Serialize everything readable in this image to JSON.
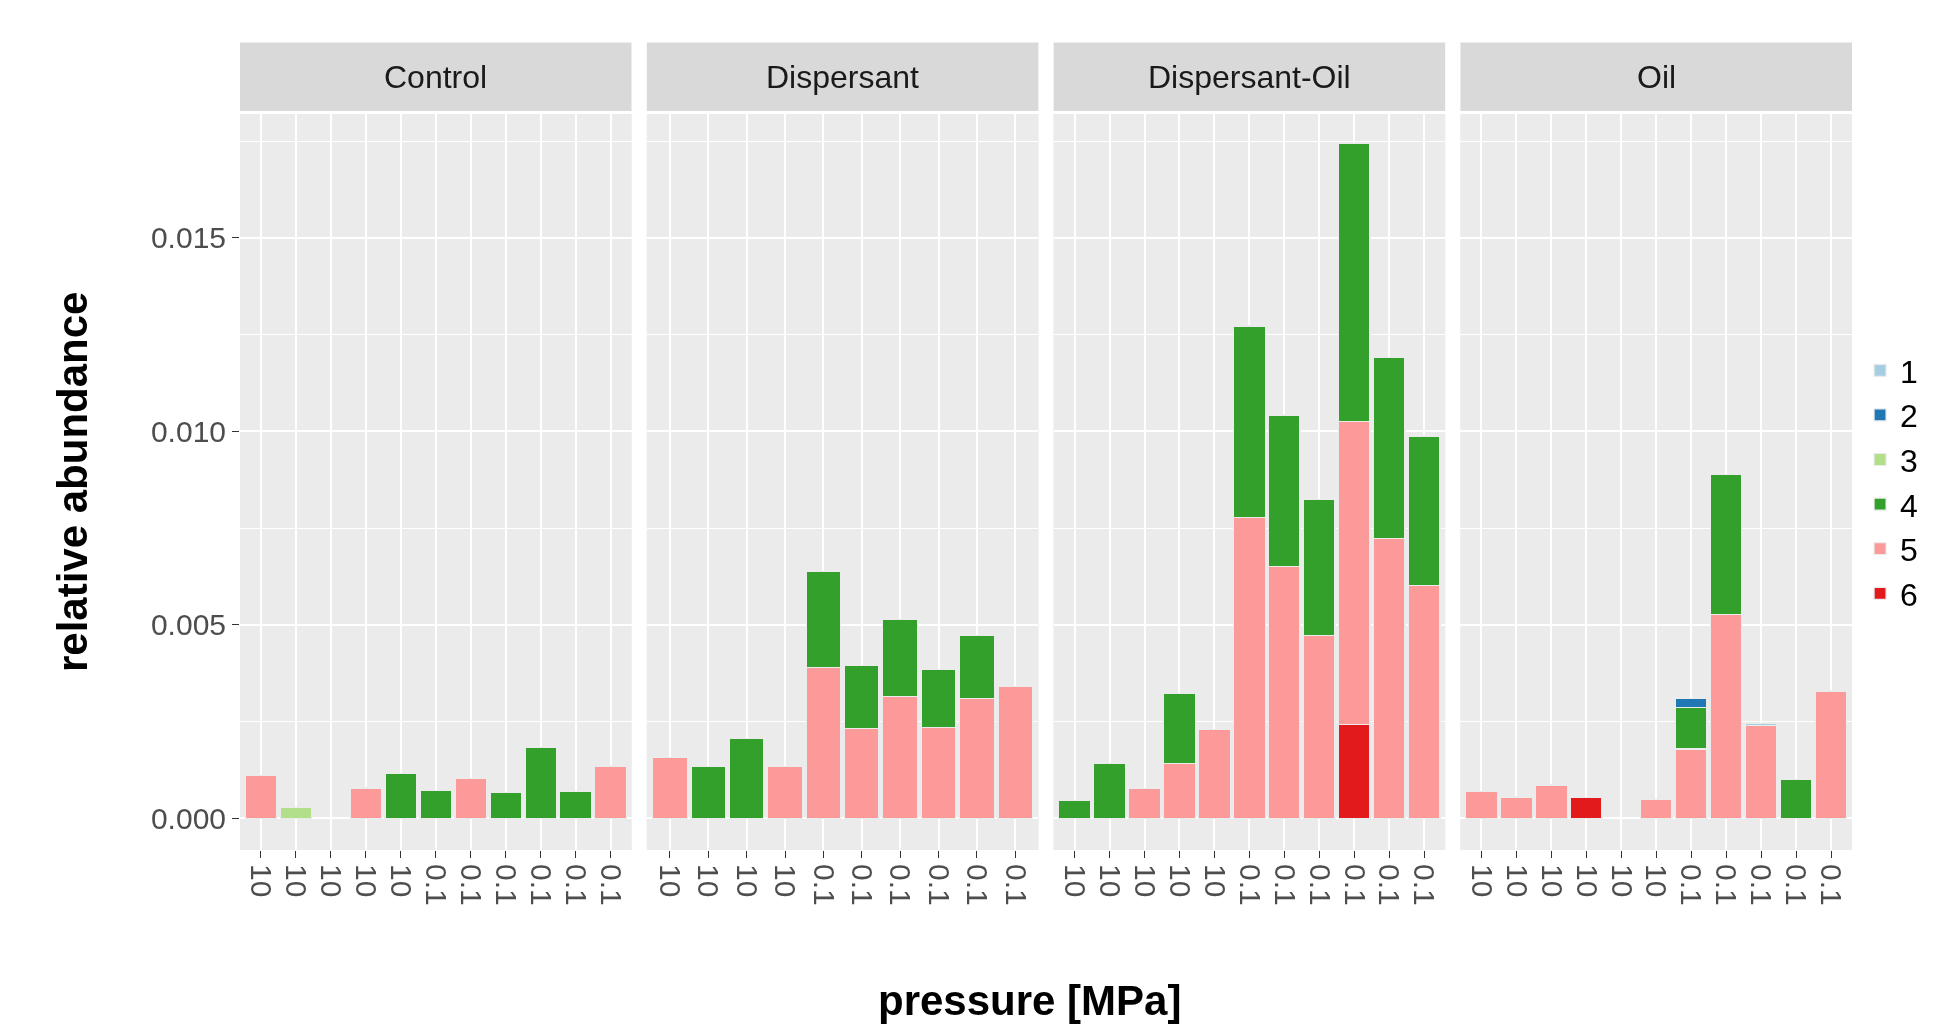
{
  "chart_data": [
    {
      "type": "bar",
      "title": "Control",
      "ylabel": "relative abundance",
      "stacked": true,
      "legend": "right",
      "grid": true,
      "categories": [
        "10",
        "10",
        "10",
        "10",
        "10",
        "0.1",
        "0.1",
        "0.1",
        "0.1",
        "0.1",
        "0.1"
      ],
      "ylim": [
        -0.00082,
        0.0182
      ],
      "yticks": [
        {
          "value": 0.0,
          "label": "0.000"
        },
        {
          "value": 0.0025,
          "label": null
        },
        {
          "value": 0.005,
          "label": "0.005"
        },
        {
          "value": 0.0075,
          "label": null
        },
        {
          "value": 0.01,
          "label": "0.010"
        },
        {
          "value": 0.0125,
          "label": null
        },
        {
          "value": 0.015,
          "label": "0.015"
        },
        {
          "value": 0.0175,
          "label": null
        }
      ],
      "series": [
        {
          "name": "6",
          "color": "#e31a1c",
          "values": [
            null,
            null,
            null,
            null,
            null,
            null,
            null,
            null,
            null,
            null,
            null
          ]
        },
        {
          "name": "5",
          "color": "#fb9a99",
          "values": [
            0.0011,
            null,
            null,
            0.00078,
            null,
            null,
            0.00102,
            null,
            null,
            null,
            0.00135
          ]
        },
        {
          "name": "4",
          "color": "#33a02c",
          "values": [
            null,
            null,
            null,
            null,
            0.00115,
            0.00072,
            null,
            0.00067,
            0.00183,
            0.0007,
            null
          ]
        },
        {
          "name": "3",
          "color": "#b2df8a",
          "values": [
            null,
            0.00027,
            null,
            null,
            null,
            null,
            null,
            null,
            null,
            null,
            null
          ]
        },
        {
          "name": "2",
          "color": "#1f78b4",
          "values": [
            null,
            null,
            null,
            null,
            null,
            null,
            null,
            null,
            null,
            null,
            null
          ]
        },
        {
          "name": "1",
          "color": "#a6cee3",
          "values": [
            null,
            null,
            null,
            null,
            null,
            null,
            null,
            null,
            null,
            null,
            null
          ]
        }
      ]
    },
    {
      "type": "bar",
      "title": "Dispersant",
      "xlabel": "pressure [MPa]",
      "stacked": true,
      "grid": true,
      "tick_labels": "x",
      "categories": [
        "10",
        "10",
        "10",
        "10",
        "0.1",
        "0.1",
        "0.1",
        "0.1",
        "0.1",
        "0.1"
      ],
      "ylim": [
        -0.00082,
        0.0182
      ],
      "yticks": [
        0,
        {
          "value": 0.0025,
          "label": null
        },
        0.005,
        {
          "value": 0.0075,
          "label": null
        },
        0.01,
        {
          "value": 0.0125,
          "label": null
        },
        0.015,
        {
          "value": 0.0175,
          "label": null
        }
      ],
      "series": [
        {
          "color": "#fb9a99",
          "values": [
            0.00157,
            null,
            null,
            0.00133,
            0.0039,
            0.00232,
            0.00315,
            0.00235,
            0.0031,
            0.0034
          ]
        },
        {
          "color": "#33a02c",
          "values": [
            null,
            0.00133,
            0.00207,
            null,
            0.00248,
            0.00163,
            0.00199,
            0.00149,
            0.00163,
            null
          ]
        }
      ]
    },
    {
      "type": "bar",
      "title": "Dispersant-Oil",
      "stacked": true,
      "grid": true,
      "tick_labels": "x",
      "categories": [
        "10",
        "10",
        "10",
        "10",
        "10",
        "0.1",
        "0.1",
        "0.1",
        "0.1",
        "0.1",
        "0.1"
      ],
      "ylim": [
        -0.00082,
        0.0182
      ],
      "yticks": [
        0,
        {
          "value": 0.0025,
          "label": null
        },
        0.005,
        {
          "value": 0.0075,
          "label": null
        },
        0.01,
        {
          "value": 0.0125,
          "label": null
        },
        0.015,
        {
          "value": 0.0175,
          "label": null
        }
      ],
      "series": [
        {
          "color": "#e31a1c",
          "values": [
            null,
            null,
            null,
            null,
            null,
            null,
            null,
            null,
            0.00243,
            null,
            null
          ]
        },
        {
          "color": "#fb9a99",
          "values": [
            null,
            null,
            0.00076,
            0.00142,
            0.00229,
            0.00777,
            0.0065,
            0.00473,
            0.00783,
            0.00722,
            0.00601
          ]
        },
        {
          "color": "#33a02c",
          "values": [
            0.00045,
            0.00142,
            null,
            0.0018,
            null,
            0.00495,
            0.00392,
            0.0035,
            0.00717,
            0.00469,
            0.00387
          ]
        }
      ]
    },
    {
      "type": "bar",
      "title": "Oil",
      "stacked": true,
      "grid": true,
      "tick_labels": "x",
      "categories": [
        "10",
        "10",
        "10",
        "10",
        "10",
        "10",
        "0.1",
        "0.1",
        "0.1",
        "0.1",
        "0.1"
      ],
      "ylim": [
        -0.00082,
        0.0182
      ],
      "yticks": [
        0,
        {
          "value": 0.0025,
          "label": null
        },
        0.005,
        {
          "value": 0.0075,
          "label": null
        },
        0.01,
        {
          "value": 0.0125,
          "label": null
        },
        0.015,
        {
          "value": 0.0175,
          "label": null
        }
      ],
      "series": [
        {
          "color": "#e31a1c",
          "values": [
            null,
            null,
            null,
            0.00053,
            null,
            null,
            null,
            null,
            null,
            null,
            null
          ]
        },
        {
          "color": "#fb9a99",
          "values": [
            0.00069,
            0.00055,
            0.00086,
            null,
            null,
            0.00048,
            0.00179,
            0.00527,
            0.00239,
            null,
            0.00329
          ]
        },
        {
          "color": "#33a02c",
          "values": [
            null,
            null,
            null,
            null,
            null,
            null,
            0.00107,
            0.00362,
            null,
            0.001,
            null
          ]
        },
        {
          "color": "#1f78b4",
          "values": [
            null,
            null,
            null,
            null,
            null,
            null,
            0.00023,
            null,
            null,
            null,
            null
          ]
        },
        {
          "color": "#a6cee3",
          "values": [
            null,
            null,
            null,
            null,
            null,
            null,
            null,
            null,
            5e-05,
            null,
            null
          ]
        }
      ]
    }
  ]
}
